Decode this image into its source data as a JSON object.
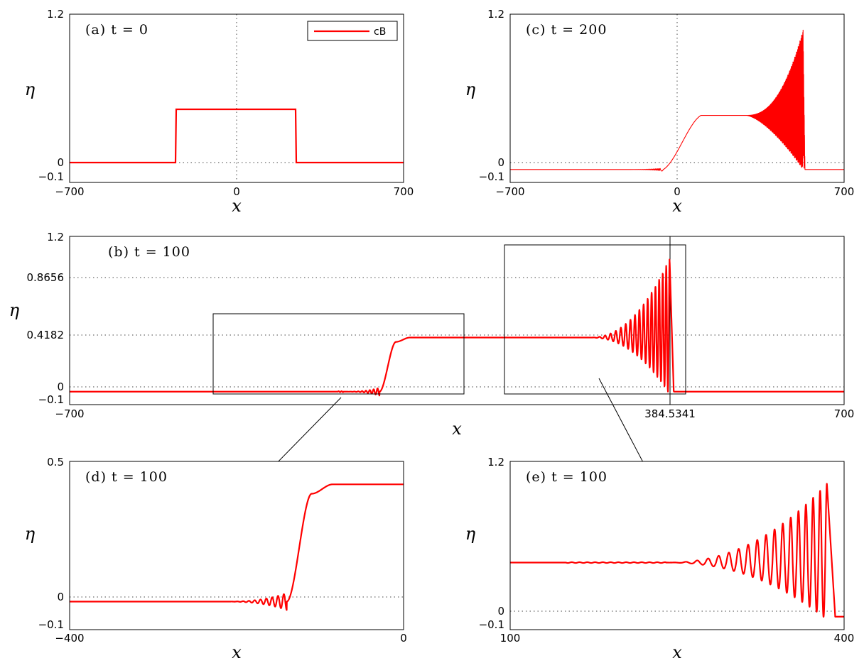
{
  "colors": {
    "series": "#ff0000",
    "axes": "#000000",
    "guides": "#444444"
  },
  "chart_data": [
    {
      "id": "a",
      "type": "line",
      "title": "(a) t = 0",
      "xlabel": "x",
      "ylabel": "η",
      "xlim": [
        -700,
        700
      ],
      "ylim": [
        -0.1,
        1.2
      ],
      "xticks": [
        "−700",
        "0",
        "700"
      ],
      "yticks": [
        "−0.1",
        "0",
        "1.2"
      ],
      "grid": "dotted lines at x = 0 and y = 0",
      "legend": {
        "position": "top-right",
        "entries": [
          "cB"
        ]
      },
      "series": [
        {
          "name": "cB",
          "description": "box profile",
          "x": [
            -700,
            -255,
            -254,
            254,
            255,
            700
          ],
          "y": [
            0,
            0,
            0.4182,
            0.4182,
            0,
            0
          ]
        }
      ]
    },
    {
      "id": "c",
      "type": "line",
      "title": "(c) t = 200",
      "xlabel": "x",
      "ylabel": "η",
      "xlim": [
        -700,
        700
      ],
      "ylim": [
        -0.1,
        1.2
      ],
      "xticks": [
        "−700",
        "0",
        "700"
      ],
      "yticks": [
        "−0.1",
        "0",
        "1.2"
      ],
      "grid": "dotted lines at x = 0 and y = 0",
      "series": [
        {
          "name": "cB",
          "points": [
            [
              -700,
              0
            ],
            [
              -210,
              0
            ],
            [
              -75,
              -0.01
            ],
            [
              -60,
              0
            ],
            [
              100,
              0.4182
            ],
            [
              310,
              0.4182
            ],
            [
              520,
              0.4182
            ],
            [
              535,
              0
            ]
          ],
          "oscillation": {
            "from": 310,
            "to": 535,
            "upper_max": 1.08,
            "lower_min": 0.0
          }
        }
      ]
    },
    {
      "id": "b",
      "type": "line",
      "title": "(b) t = 100",
      "xlabel": "x",
      "ylabel": "η",
      "xlim": [
        -700,
        700
      ],
      "ylim": [
        -0.1,
        1.2
      ],
      "xticks": [
        "−700",
        "384.5341",
        "700"
      ],
      "yticks": [
        "−0.1",
        "0",
        "0.4182",
        "0.8656",
        "1.2"
      ],
      "grid": "dotted lines at y = 0, 0.4182, 0.8656 and x = 384.5341",
      "zoom_boxes": [
        {
          "x": [
            -400,
            0
          ],
          "y": [
            -0.07,
            0.57
          ]
        },
        {
          "x": [
            100,
            400
          ],
          "y": [
            -0.07,
            1.15
          ]
        }
      ],
      "series": [
        {
          "name": "cB",
          "description": "ramp from x≈-215 to x≈-85 up to 0.4182; dispersive tail of growing oscillations ending at 384.5341 with peak ≈1.03"
        }
      ]
    },
    {
      "id": "d",
      "type": "line",
      "title": "(d) t = 100",
      "xlabel": "x",
      "ylabel": "η",
      "xlim": [
        -400,
        0
      ],
      "ylim": [
        -0.1,
        0.5
      ],
      "xticks": [
        "−400",
        "0"
      ],
      "yticks": [
        "−0.1",
        "0",
        "0.5"
      ],
      "grid": "dotted line at y = 0",
      "series": [
        {
          "name": "cB",
          "points": [
            [
              -400,
              0
            ],
            [
              -210,
              0
            ],
            [
              -140,
              -0.005
            ],
            [
              -110,
              0.4182
            ],
            [
              0,
              0.4182
            ]
          ]
        }
      ]
    },
    {
      "id": "e",
      "type": "line",
      "title": "(e) t = 100",
      "xlabel": "x",
      "ylabel": "η",
      "xlim": [
        100,
        400
      ],
      "ylim": [
        -0.1,
        1.2
      ],
      "xticks": [
        "100",
        "400"
      ],
      "yticks": [
        "−0.1",
        "0",
        "1.2"
      ],
      "grid": "dotted line at y = 0",
      "series": [
        {
          "name": "cB",
          "base": 0.4182,
          "oscillation_start": 260,
          "last_peak_x": 384.5341,
          "last_peak_y": 1.03,
          "front_x": 392
        }
      ]
    }
  ]
}
